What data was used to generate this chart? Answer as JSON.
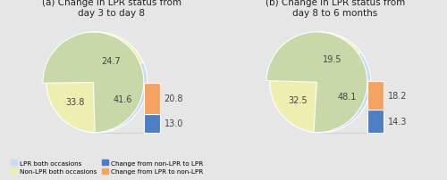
{
  "chart_a": {
    "title": "(a) Change in LPR status from\nday 3 to day 8",
    "slices": [
      24.7,
      41.6,
      33.8,
      13.0,
      20.8
    ],
    "labels_inside": [
      "24.7",
      "41.6",
      "33.8"
    ],
    "labels_outside": [
      "13.0",
      "20.8"
    ],
    "colors": [
      "#c8dced",
      "#eeeeb0",
      "#c8d8a8",
      "#4e7fc4",
      "#f4a460"
    ],
    "start_angle": 90
  },
  "chart_b": {
    "title": "(b) Change in LPR status from\nday 8 to 6 months",
    "slices": [
      19.5,
      48.1,
      32.5,
      14.3,
      18.2
    ],
    "labels_inside": [
      "19.5",
      "48.1",
      "32.5"
    ],
    "labels_outside": [
      "14.3",
      "18.2"
    ],
    "colors": [
      "#c8dced",
      "#eeeeb0",
      "#c8d8a8",
      "#4e7fc4",
      "#f4a460"
    ],
    "start_angle": 90
  },
  "legend_labels": [
    "LPR both occasions",
    "Non-LPR both occasions",
    "Change from non-LPR to LPR",
    "Change from LPR to non-LPR"
  ],
  "legend_colors": [
    "#c8dced",
    "#eeeeb0",
    "#4e7fc4",
    "#f4a460"
  ],
  "background_color": "#e6e6e6",
  "title_fontsize": 7.5,
  "label_fontsize": 7.0
}
